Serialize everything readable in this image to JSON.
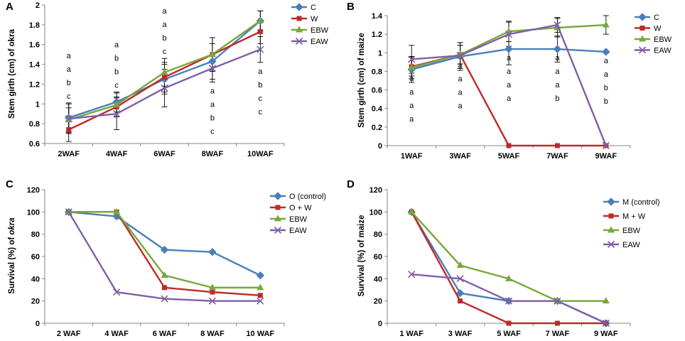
{
  "chart_data": [
    {
      "panel": "A",
      "type": "line",
      "ylabel": "Stem girth (cm) of okra",
      "categories": [
        "2WAF",
        "4WAF",
        "6WAF",
        "8WAF",
        "10WAF"
      ],
      "ylim": [
        0.6,
        2
      ],
      "yticks": [
        "0.6",
        "0.8",
        "1",
        "1.2",
        "1.4",
        "1.6",
        "1.8",
        "2"
      ],
      "series": [
        {
          "name": "C",
          "color": "#4a7ebb",
          "marker": "diamond",
          "values": [
            0.86,
            1.02,
            1.25,
            1.43,
            1.84
          ],
          "err": [
            0.15,
            0.1,
            0.15,
            0.18,
            0.1
          ]
        },
        {
          "name": "W",
          "color": "#be2a2a",
          "marker": "square",
          "values": [
            0.74,
            0.97,
            1.27,
            1.5,
            1.73
          ],
          "err": [
            0.12,
            0.1,
            0.15,
            0.17,
            0.12
          ]
        },
        {
          "name": "EBW",
          "color": "#77a83b",
          "marker": "triangle",
          "values": [
            0.84,
            0.99,
            1.32,
            1.5,
            1.84
          ],
          "err": [
            0.12,
            0.12,
            0.14,
            0.17,
            0.1
          ]
        },
        {
          "name": "EAW",
          "color": "#7f5fa8",
          "marker": "x",
          "values": [
            0.85,
            0.9,
            1.16,
            1.36,
            1.55
          ],
          "err": [
            0.15,
            0.16,
            0.19,
            0.14,
            0.13
          ]
        }
      ],
      "annotations": [
        {
          "letters": [
            "a",
            "a",
            "b",
            "c"
          ],
          "pos": "above"
        },
        {
          "letters": [
            "a",
            "b",
            "b",
            "c"
          ],
          "pos": "above"
        },
        {
          "letters": [
            "a",
            "a",
            "b",
            "c"
          ],
          "pos": "above"
        },
        {
          "letters": [
            "a",
            "a",
            "b",
            "c"
          ],
          "pos": "below"
        },
        {
          "letters": [
            "a",
            "b",
            "c",
            "c"
          ],
          "pos": "below"
        }
      ]
    },
    {
      "panel": "B",
      "type": "line",
      "ylabel": "Stem girth (cm) of maize",
      "categories": [
        "1WAF",
        "3WAF",
        "5WAF",
        "7WAF",
        "9WAF"
      ],
      "ylim": [
        0,
        1.4
      ],
      "yticks": [
        "0",
        "0.2",
        "0.4",
        "0.6",
        "0.8",
        "1",
        "1.2",
        "1.4"
      ],
      "series": [
        {
          "name": "C",
          "color": "#4a7ebb",
          "marker": "diamond",
          "values": [
            0.82,
            0.96,
            1.04,
            1.04,
            1.01
          ],
          "err": [
            0.14,
            0.15,
            0.17,
            0.14,
            0
          ]
        },
        {
          "name": "W",
          "color": "#be2a2a",
          "marker": "square",
          "values": [
            0.85,
            0.98,
            0,
            0,
            0
          ],
          "err": [
            0.1,
            0.1,
            0,
            0,
            0
          ]
        },
        {
          "name": "EBW",
          "color": "#77a83b",
          "marker": "triangle",
          "values": [
            0.84,
            0.98,
            1.23,
            1.27,
            1.3
          ],
          "err": [
            0.12,
            0.1,
            0.11,
            0.1,
            0.1
          ]
        },
        {
          "name": "EAW",
          "color": "#7f5fa8",
          "marker": "x",
          "values": [
            0.93,
            0.97,
            1.2,
            1.3,
            0
          ],
          "err": [
            0.15,
            0.14,
            0.13,
            0.08,
            0
          ]
        }
      ],
      "annotations": [
        {
          "letters": [
            "a",
            "a",
            "a",
            "a"
          ],
          "pos": "below"
        },
        {
          "letters": [
            "a",
            "a",
            "a",
            "a"
          ],
          "pos": "below"
        },
        {
          "letters": [
            "a",
            "a",
            "a",
            "a"
          ],
          "pos": "below"
        },
        {
          "letters": [
            "a",
            "a",
            "a",
            "b"
          ],
          "pos": "below"
        },
        {
          "letters": [
            "a",
            "a",
            "b",
            "b"
          ],
          "pos": "below"
        }
      ]
    },
    {
      "panel": "C",
      "type": "line",
      "ylabel_prefix": "Survival (%) of ",
      "ylabel_italic": "okra",
      "categories": [
        "2 WAF",
        "4 WAF",
        "6 WAF",
        "8 WAF",
        "10 WAF"
      ],
      "ylim": [
        0,
        120
      ],
      "yticks": [
        "0",
        "20",
        "40",
        "60",
        "80",
        "100",
        "120"
      ],
      "series": [
        {
          "name": "O (control)",
          "color": "#4a7ebb",
          "marker": "diamond",
          "values": [
            100,
            96,
            66,
            64,
            43
          ]
        },
        {
          "name": "O + W",
          "color": "#be2a2a",
          "marker": "square",
          "values": [
            100,
            100,
            32,
            28,
            25
          ]
        },
        {
          "name": "EBW",
          "color": "#77a83b",
          "marker": "triangle",
          "values": [
            100,
            100,
            43,
            32,
            32
          ]
        },
        {
          "name": "EAW",
          "color": "#7f5fa8",
          "marker": "x",
          "values": [
            100,
            28,
            22,
            20,
            20
          ]
        }
      ]
    },
    {
      "panel": "D",
      "type": "line",
      "ylabel": "Survival (%) of maize",
      "categories": [
        "1 WAF",
        "3 WAF",
        "5 WAF",
        "7 WAF",
        "9 WAF"
      ],
      "ylim": [
        0,
        120
      ],
      "yticks": [
        "0",
        "20",
        "40",
        "60",
        "80",
        "100",
        "120"
      ],
      "series": [
        {
          "name": "M (control)",
          "color": "#4a7ebb",
          "marker": "diamond",
          "values": [
            100,
            27,
            20,
            20,
            0
          ]
        },
        {
          "name": "M + W",
          "color": "#be2a2a",
          "marker": "square",
          "values": [
            100,
            20,
            0,
            0,
            0
          ]
        },
        {
          "name": "EBW",
          "color": "#77a83b",
          "marker": "triangle",
          "values": [
            100,
            52,
            40,
            20,
            20
          ]
        },
        {
          "name": "EAW",
          "color": "#7f5fa8",
          "marker": "x",
          "values": [
            44,
            40,
            20,
            20,
            0
          ]
        }
      ]
    }
  ]
}
